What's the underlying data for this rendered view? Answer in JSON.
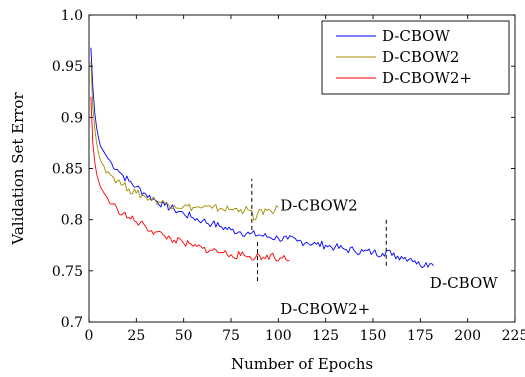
{
  "chart_data": {
    "type": "line",
    "xlabel": "Number of Epochs",
    "ylabel": "Validation Set Error",
    "xlim": [
      0,
      225
    ],
    "ylim": [
      0.7,
      1.0
    ],
    "xticks": [
      0,
      25,
      50,
      75,
      100,
      125,
      150,
      175,
      200,
      225
    ],
    "yticks": [
      0.7,
      0.75,
      0.8,
      0.85,
      0.9,
      0.95,
      1.0
    ],
    "xtick_labels": [
      "0",
      "25",
      "50",
      "75",
      "100",
      "125",
      "150",
      "175",
      "200",
      "225"
    ],
    "ytick_labels": [
      "0.7",
      "0.75",
      "0.8",
      "0.85",
      "0.9",
      "0.95",
      "1.0"
    ],
    "grid": false,
    "legend": "top-right",
    "series": [
      {
        "name": "D-CBOW",
        "color": "#0000ff",
        "x": [
          1,
          2,
          3,
          4,
          5,
          6,
          8,
          10,
          12,
          15,
          18,
          21,
          25,
          30,
          35,
          40,
          45,
          50,
          55,
          60,
          65,
          70,
          75,
          80,
          85,
          90,
          95,
          100,
          105,
          110,
          115,
          120,
          125,
          130,
          135,
          140,
          145,
          150,
          155,
          158,
          160,
          165,
          170,
          172,
          175,
          178,
          180,
          182
        ],
        "y": [
          0.968,
          0.93,
          0.905,
          0.89,
          0.88,
          0.872,
          0.866,
          0.86,
          0.855,
          0.849,
          0.843,
          0.838,
          0.832,
          0.825,
          0.819,
          0.814,
          0.81,
          0.806,
          0.802,
          0.799,
          0.796,
          0.793,
          0.79,
          0.788,
          0.786,
          0.785,
          0.783,
          0.782,
          0.781,
          0.779,
          0.778,
          0.776,
          0.775,
          0.773,
          0.771,
          0.77,
          0.769,
          0.768,
          0.767,
          0.77,
          0.765,
          0.764,
          0.762,
          0.76,
          0.755,
          0.758,
          0.757,
          0.755
        ]
      },
      {
        "name": "D-CBOW2",
        "color": "#a08c00",
        "x": [
          1,
          2,
          3,
          4,
          5,
          6,
          8,
          10,
          12,
          15,
          18,
          21,
          25,
          30,
          35,
          40,
          45,
          50,
          55,
          60,
          65,
          70,
          75,
          80,
          85,
          88,
          90,
          92,
          95,
          98,
          100
        ],
        "y": [
          0.955,
          0.91,
          0.89,
          0.875,
          0.865,
          0.858,
          0.852,
          0.847,
          0.843,
          0.838,
          0.834,
          0.83,
          0.826,
          0.822,
          0.819,
          0.816,
          0.814,
          0.813,
          0.812,
          0.812,
          0.811,
          0.811,
          0.81,
          0.81,
          0.809,
          0.8,
          0.81,
          0.805,
          0.81,
          0.808,
          0.812
        ]
      },
      {
        "name": "D-CBOW2+",
        "color": "#ff0000",
        "x": [
          1,
          2,
          3,
          4,
          5,
          6,
          8,
          10,
          12,
          15,
          18,
          21,
          25,
          30,
          35,
          40,
          45,
          50,
          55,
          60,
          65,
          70,
          75,
          80,
          85,
          88,
          90,
          93,
          96,
          100,
          103,
          106
        ],
        "y": [
          0.92,
          0.875,
          0.857,
          0.845,
          0.838,
          0.832,
          0.826,
          0.82,
          0.815,
          0.81,
          0.806,
          0.802,
          0.798,
          0.793,
          0.788,
          0.784,
          0.78,
          0.777,
          0.774,
          0.772,
          0.77,
          0.768,
          0.766,
          0.765,
          0.764,
          0.763,
          0.765,
          0.762,
          0.766,
          0.76,
          0.765,
          0.76
        ]
      }
    ],
    "annotations": [
      {
        "text": "D-CBOW2",
        "x": 101,
        "y": 0.809,
        "marker_x": 86,
        "marker_y": [
          0.79,
          0.84
        ]
      },
      {
        "text": "D-CBOW",
        "x": 180,
        "y": 0.733,
        "marker_x": 157,
        "marker_y": [
          0.755,
          0.8
        ]
      },
      {
        "text": "D-CBOW2+",
        "x": 101,
        "y": 0.708,
        "marker_x": 89,
        "marker_y": [
          0.74,
          0.78
        ]
      }
    ]
  }
}
